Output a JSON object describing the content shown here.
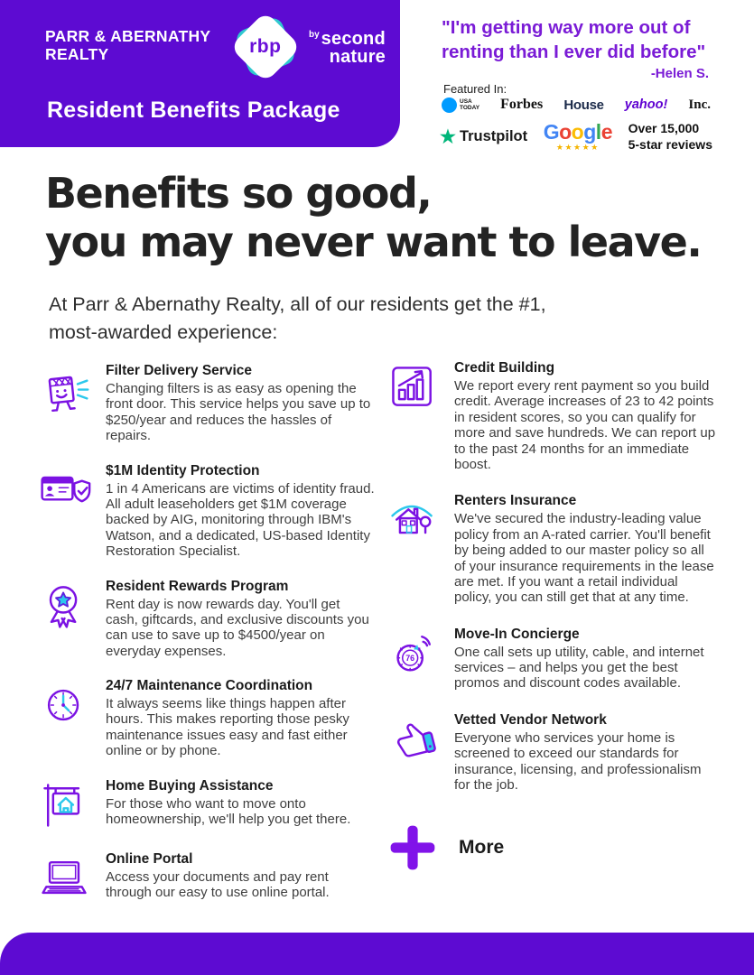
{
  "header": {
    "company_line1": "PARR & ABERNATHY",
    "company_line2": "REALTY",
    "logo_text": "rbp",
    "by_label": "by",
    "brand_line1": "second",
    "brand_line2": "nature",
    "package_title": "Resident Benefits Package"
  },
  "testimonial": {
    "quote_line1": "\"I'm getting way more out of",
    "quote_line2": "renting than I ever did before\"",
    "attribution": "-Helen S."
  },
  "featured": {
    "label": "Featured In:",
    "usa_today_line1": "USA",
    "usa_today_line2": "TODAY",
    "forbes": "Forbes",
    "house": "House",
    "yahoo": "yahoo!",
    "inc": "Inc.",
    "trustpilot": "Trustpilot",
    "star_glyph": "★",
    "google": {
      "letters": [
        "G",
        "o",
        "o",
        "g",
        "l",
        "e"
      ],
      "colors": [
        "#4285F4",
        "#EA4335",
        "#FBBC05",
        "#4285F4",
        "#34A853",
        "#EA4335"
      ],
      "stars": "★★★★★"
    },
    "reviews_line1": "Over 15,000",
    "reviews_line2": "5-star reviews"
  },
  "headline": {
    "line1": "Benefits so good,",
    "line2": "you may never want to leave."
  },
  "subheadline": {
    "line1": "At Parr & Abernathy Realty, all of our residents get the #1,",
    "line2": "most-awarded experience:"
  },
  "icons": {
    "move_in_dial_value": "76"
  },
  "benefits": {
    "left": [
      {
        "title": "Filter Delivery Service",
        "description": "Changing filters is as easy as opening the front door. This service helps you save up to $250/year and reduces the hassles of repairs."
      },
      {
        "title": "$1M Identity Protection",
        "description": "1 in 4 Americans are victims of identity fraud. All adult leaseholders get $1M coverage backed by AIG, monitoring through IBM's Watson, and a dedicated, US-based Identity Restoration Specialist."
      },
      {
        "title": "Resident Rewards Program",
        "description": "Rent day is now rewards day. You'll get cash, giftcards, and exclusive discounts you can use to save up to $4500/year on everyday expenses."
      },
      {
        "title": "24/7 Maintenance Coordination",
        "description": "It always seems like things happen after hours. This makes reporting those pesky maintenance issues easy and fast either online or by phone."
      },
      {
        "title": "Home Buying Assistance",
        "description": "For those who want to move onto homeownership, we'll help you get there."
      },
      {
        "title": "Online Portal",
        "description": "Access your documents and pay rent through our easy to use online portal."
      }
    ],
    "right": [
      {
        "title": "Credit Building",
        "description": "We report every rent payment so you build credit. Average increases of 23 to 42 points in resident scores, so you can qualify for more and save hundreds. We can report up to the past 24 months for an immediate boost."
      },
      {
        "title": "Renters Insurance",
        "description": "We've secured the industry-leading value policy from an A-rated carrier. You'll benefit by being added to our master policy so all of your insurance requirements in the lease are met. If you want a retail individual policy, you can still get that at any time."
      },
      {
        "title": "Move-In Concierge",
        "description": "One call sets up utility, cable, and internet services – and helps you get the best promos and discount codes available."
      },
      {
        "title": "Vetted Vendor Network",
        "description": "Everyone who services your home is screened to exceed our standards for insurance, licensing, and professionalism for the job."
      }
    ],
    "more_label": "More"
  },
  "colors": {
    "brand_purple": "#5d0bd2",
    "quote_purple": "#7a1bd6",
    "icon_purple": "#7b12e3",
    "accent_cyan": "#2bc8ec",
    "trustpilot_green": "#00b67a",
    "usa_today_blue": "#009bff",
    "yahoo_purple": "#5f01d1",
    "google_star_gold": "#f4b400"
  }
}
